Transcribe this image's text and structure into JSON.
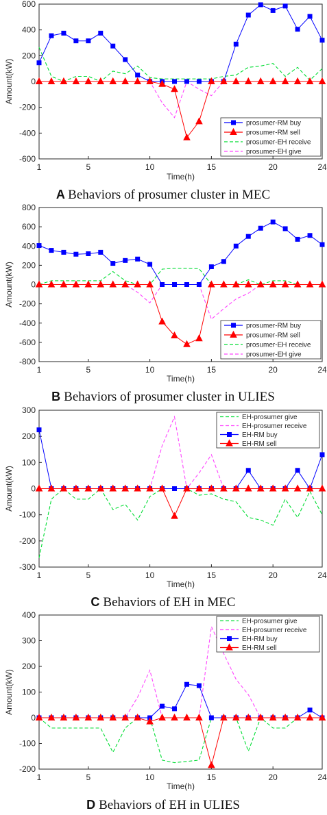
{
  "colors": {
    "blue": "#0000ff",
    "red": "#ff0000",
    "green": "#00dd33",
    "magenta": "#ff44ff",
    "zero_line": "#ff66ff"
  },
  "chart_data": [
    {
      "type": "line",
      "caption_letter": "A",
      "caption_text": "Behaviors of prosumer cluster in MEC",
      "xlabel": "Time(h)",
      "ylabel": "Amount(kW)",
      "xlim": [
        1,
        24
      ],
      "ylim": [
        -600,
        600
      ],
      "xticks": [
        1,
        5,
        10,
        15,
        20,
        24
      ],
      "yticks": [
        -600,
        -400,
        -200,
        0,
        200,
        400,
        600
      ],
      "legend_position": "lower-right",
      "x": [
        1,
        2,
        3,
        4,
        5,
        6,
        7,
        8,
        9,
        10,
        11,
        12,
        13,
        14,
        15,
        16,
        17,
        18,
        19,
        20,
        21,
        22,
        23,
        24
      ],
      "series": [
        {
          "name": "prosumer-RM buy",
          "style": "blue-square",
          "values": [
            145,
            355,
            375,
            315,
            315,
            375,
            275,
            170,
            50,
            0,
            0,
            0,
            0,
            0,
            0,
            0,
            290,
            515,
            595,
            550,
            585,
            405,
            505,
            320
          ]
        },
        {
          "name": "prosumer-RM sell",
          "style": "red-triangle",
          "values": [
            0,
            0,
            0,
            0,
            0,
            0,
            0,
            0,
            0,
            0,
            -20,
            -60,
            -435,
            -310,
            0,
            0,
            0,
            0,
            0,
            0,
            0,
            0,
            0,
            0
          ]
        },
        {
          "name": "prosumer-EH receive",
          "style": "green-dash",
          "values": [
            265,
            40,
            0,
            40,
            40,
            0,
            80,
            60,
            120,
            30,
            20,
            20,
            20,
            20,
            20,
            40,
            50,
            110,
            120,
            140,
            40,
            110,
            10,
            100
          ]
        },
        {
          "name": "prosumer-EH give",
          "style": "magenta-dash",
          "values": [
            0,
            0,
            0,
            0,
            0,
            0,
            0,
            0,
            0,
            0,
            -165,
            -280,
            0,
            -60,
            -110,
            0,
            0,
            0,
            0,
            0,
            0,
            0,
            0,
            0
          ]
        }
      ]
    },
    {
      "type": "line",
      "caption_letter": "B",
      "caption_text": "Behaviors of prosumer cluster in ULIES",
      "xlabel": "Time(h)",
      "ylabel": "Amount(kW)",
      "xlim": [
        1,
        24
      ],
      "ylim": [
        -800,
        800
      ],
      "xticks": [
        1,
        5,
        10,
        15,
        20,
        24
      ],
      "yticks": [
        -800,
        -600,
        -400,
        -200,
        0,
        200,
        400,
        600,
        800
      ],
      "legend_position": "lower-right",
      "x": [
        1,
        2,
        3,
        4,
        5,
        6,
        7,
        8,
        9,
        10,
        11,
        12,
        13,
        14,
        15,
        16,
        17,
        18,
        19,
        20,
        21,
        22,
        23,
        24
      ],
      "series": [
        {
          "name": "prosumer-RM buy",
          "style": "blue-square",
          "values": [
            405,
            355,
            335,
            315,
            320,
            335,
            220,
            250,
            265,
            210,
            0,
            0,
            0,
            0,
            185,
            240,
            400,
            500,
            585,
            650,
            580,
            470,
            510,
            415
          ]
        },
        {
          "name": "prosumer-RM sell",
          "style": "red-triangle",
          "values": [
            0,
            0,
            0,
            0,
            0,
            0,
            0,
            0,
            0,
            0,
            -385,
            -530,
            -620,
            -560,
            0,
            0,
            0,
            0,
            0,
            0,
            0,
            0,
            0,
            0
          ]
        },
        {
          "name": "prosumer-EH receive",
          "style": "green-dash",
          "values": [
            0,
            40,
            40,
            40,
            40,
            40,
            135,
            40,
            0,
            0,
            160,
            170,
            170,
            165,
            0,
            0,
            0,
            50,
            0,
            40,
            40,
            0,
            0,
            0
          ]
        },
        {
          "name": "prosumer-EH give",
          "style": "magenta-dash",
          "values": [
            0,
            0,
            0,
            0,
            0,
            0,
            0,
            0,
            -80,
            -190,
            0,
            0,
            0,
            0,
            -360,
            -250,
            -150,
            -90,
            0,
            0,
            0,
            0,
            0,
            0
          ]
        }
      ]
    },
    {
      "type": "line",
      "caption_letter": "C",
      "caption_text": "Behaviors of EH in MEC",
      "xlabel": "Time(h)",
      "ylabel": "Amount(kW)",
      "xlim": [
        1,
        24
      ],
      "ylim": [
        -300,
        300
      ],
      "xticks": [
        1,
        5,
        10,
        15,
        20,
        24
      ],
      "yticks": [
        -300,
        -200,
        -100,
        0,
        100,
        200,
        300
      ],
      "legend_position": "upper-right",
      "x": [
        1,
        2,
        3,
        4,
        5,
        6,
        7,
        8,
        9,
        10,
        11,
        12,
        13,
        14,
        15,
        16,
        17,
        18,
        19,
        20,
        21,
        22,
        23,
        24
      ],
      "series": [
        {
          "name": "EH-prosumer give",
          "style": "green-dash",
          "values": [
            -265,
            -40,
            0,
            -40,
            -40,
            0,
            -80,
            -60,
            -120,
            -30,
            0,
            0,
            0,
            -25,
            -20,
            -40,
            -50,
            -110,
            -120,
            -140,
            -40,
            -110,
            -10,
            -100
          ]
        },
        {
          "name": "EH-prosumer receive",
          "style": "magenta-dash",
          "values": [
            0,
            0,
            0,
            0,
            0,
            0,
            0,
            0,
            0,
            0,
            165,
            275,
            0,
            60,
            130,
            0,
            0,
            0,
            0,
            0,
            0,
            0,
            0,
            0
          ]
        },
        {
          "name": "EH-RM buy",
          "style": "blue-square",
          "values": [
            225,
            0,
            0,
            0,
            0,
            0,
            0,
            0,
            0,
            0,
            0,
            0,
            0,
            0,
            0,
            0,
            0,
            70,
            0,
            0,
            0,
            70,
            0,
            130
          ]
        },
        {
          "name": "EH-RM sell",
          "style": "red-triangle",
          "values": [
            0,
            0,
            0,
            0,
            0,
            0,
            0,
            0,
            0,
            0,
            0,
            -105,
            0,
            0,
            0,
            0,
            0,
            0,
            0,
            0,
            0,
            0,
            0,
            0
          ]
        }
      ]
    },
    {
      "type": "line",
      "caption_letter": "D",
      "caption_text": "Behaviors of EH in ULIES",
      "xlabel": "Time(h)",
      "ylabel": "Amount(kW)",
      "xlim": [
        1,
        24
      ],
      "ylim": [
        -200,
        400
      ],
      "xticks": [
        1,
        5,
        10,
        15,
        20,
        24
      ],
      "yticks": [
        -200,
        -100,
        0,
        100,
        200,
        300,
        400
      ],
      "legend_position": "upper-right",
      "x": [
        1,
        2,
        3,
        4,
        5,
        6,
        7,
        8,
        9,
        10,
        11,
        12,
        13,
        14,
        15,
        16,
        17,
        18,
        19,
        20,
        21,
        22,
        23,
        24
      ],
      "series": [
        {
          "name": "EH-prosumer give",
          "style": "green-dash",
          "values": [
            0,
            -40,
            -40,
            -40,
            -40,
            -40,
            -135,
            -40,
            0,
            0,
            -165,
            -175,
            -170,
            -165,
            0,
            0,
            0,
            -130,
            0,
            -40,
            -40,
            0,
            0,
            0
          ]
        },
        {
          "name": "EH-prosumer receive",
          "style": "magenta-dash",
          "values": [
            0,
            0,
            0,
            0,
            0,
            0,
            0,
            0,
            80,
            185,
            0,
            0,
            0,
            0,
            355,
            250,
            150,
            90,
            0,
            0,
            0,
            0,
            0,
            0
          ]
        },
        {
          "name": "EH-RM buy",
          "style": "blue-square",
          "values": [
            0,
            0,
            0,
            0,
            0,
            0,
            0,
            0,
            0,
            0,
            45,
            35,
            130,
            125,
            0,
            0,
            0,
            0,
            0,
            0,
            0,
            0,
            30,
            0
          ]
        },
        {
          "name": "EH-RM sell",
          "style": "red-triangle",
          "values": [
            0,
            0,
            0,
            0,
            0,
            0,
            0,
            0,
            0,
            -15,
            0,
            0,
            0,
            0,
            -185,
            0,
            0,
            0,
            0,
            0,
            0,
            0,
            0,
            0
          ]
        }
      ]
    }
  ]
}
